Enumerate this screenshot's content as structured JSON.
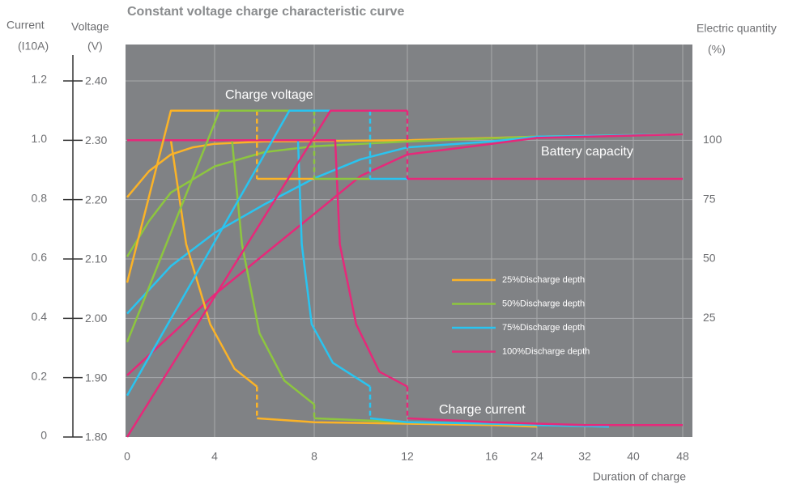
{
  "chart_data": {
    "type": "line",
    "title": "Constant voltage charge characteristic curve",
    "y_label": [
      "Current",
      "(I10A)"
    ],
    "y2_label": [
      "Voltage",
      "(V)"
    ],
    "y3_label": [
      "Electric quantity",
      "(%)"
    ],
    "x_label": "Duration of charge",
    "annotations": [
      "Charge voltage",
      "Battery capacity",
      "Charge current"
    ],
    "xlim": [
      0,
      48
    ],
    "xticks": [
      0,
      4,
      8,
      12,
      16,
      24,
      32,
      40,
      48
    ],
    "ylim": [
      0,
      1.2
    ],
    "yticks": [
      0,
      0.2,
      0.4,
      0.6,
      0.8,
      {
        "value": 1,
        "label": "1.0"
      },
      1.2
    ],
    "y2lim": [
      1.8,
      2.4
    ],
    "y2ticks": [
      {
        "value": 1.8,
        "label": "1.80"
      },
      {
        "value": 1.9,
        "label": "1.90"
      },
      {
        "value": 2.0,
        "label": "2.00"
      },
      {
        "value": 2.1,
        "label": "2.10"
      },
      {
        "value": 2.2,
        "label": "2.20"
      },
      {
        "value": 2.3,
        "label": "2.30"
      },
      {
        "value": 2.4,
        "label": "2.40"
      }
    ],
    "y3lim": [
      -25,
      125
    ],
    "y3ticks": [
      25,
      50,
      75,
      100
    ],
    "grid": true,
    "series": [
      {
        "name": "25%Discharge depth",
        "color": "#fbb327",
        "voltage": {
          "axis": "y2",
          "x": [
            0,
            2,
            5.7,
            5.7,
            5.7,
            8
          ],
          "values": [
            2.06,
            2.35,
            2.35,
            null,
            2.235,
            2.235
          ]
        },
        "current": {
          "axis": "y",
          "x": [
            0,
            2,
            2.7,
            3.8,
            4.8,
            5.7,
            5.7,
            5.7,
            8,
            12,
            16,
            24
          ],
          "values": [
            1.0,
            1.0,
            0.65,
            0.38,
            0.23,
            0.17,
            null,
            0.063,
            0.05,
            0.045,
            0.04,
            0.035
          ]
        },
        "capacity": {
          "axis": "y3",
          "x": [
            0,
            1,
            2,
            3,
            4,
            6,
            12,
            24,
            48
          ],
          "values": [
            76,
            87,
            94,
            97,
            98.5,
            99.5,
            100,
            101.5,
            102.5
          ]
        }
      },
      {
        "name": "50%Discharge depth",
        "color": "#8dc63f",
        "voltage": {
          "axis": "y2",
          "x": [
            0,
            4.2,
            8,
            8,
            8,
            10.4
          ],
          "values": [
            1.96,
            2.35,
            2.35,
            null,
            2.235,
            2.235
          ]
        },
        "current": {
          "axis": "y",
          "x": [
            0,
            4.7,
            5.1,
            5.8,
            6.8,
            8,
            8,
            8,
            12,
            16,
            24
          ],
          "values": [
            1.0,
            1.0,
            0.65,
            0.35,
            0.19,
            0.11,
            null,
            0.063,
            0.05,
            0.045,
            0.04
          ]
        },
        "capacity": {
          "axis": "y3",
          "x": [
            0,
            1,
            2,
            4,
            6,
            8,
            12,
            24,
            48
          ],
          "values": [
            51,
            66,
            78,
            89,
            95,
            97.5,
            99.5,
            101.5,
            102.5
          ]
        }
      },
      {
        "name": "75%Discharge depth",
        "color": "#29c4f0",
        "voltage": {
          "axis": "y2",
          "x": [
            0,
            7,
            10.4,
            10.4,
            10.4,
            12
          ],
          "values": [
            1.87,
            2.35,
            2.35,
            null,
            2.235,
            2.235
          ]
        },
        "current": {
          "axis": "y",
          "x": [
            0,
            7.35,
            7.5,
            7.9,
            8.8,
            10.4,
            10.4,
            10.4,
            12,
            16,
            24,
            36
          ],
          "values": [
            1.0,
            1.0,
            0.65,
            0.38,
            0.25,
            0.17,
            null,
            0.063,
            0.05,
            0.045,
            0.04,
            0.035
          ]
        },
        "capacity": {
          "axis": "y3",
          "x": [
            0,
            2,
            4,
            6,
            8,
            10,
            12,
            16,
            24,
            48
          ],
          "values": [
            27,
            47,
            61,
            73,
            84,
            92,
            97,
            99.5,
            101.5,
            102.5
          ]
        }
      },
      {
        "name": "100%Discharge depth",
        "color": "#e6297a",
        "voltage": {
          "axis": "y2",
          "x": [
            0,
            8.7,
            12,
            12,
            12,
            48
          ],
          "values": [
            1.8,
            2.35,
            2.35,
            null,
            2.235,
            2.235
          ]
        },
        "current": {
          "axis": "y",
          "x": [
            0,
            8.9,
            9.1,
            9.8,
            10.8,
            12,
            12,
            12,
            16,
            24,
            32,
            48
          ],
          "values": [
            1.0,
            1.0,
            0.65,
            0.38,
            0.22,
            0.17,
            null,
            0.063,
            0.05,
            0.045,
            0.04,
            0.04
          ]
        },
        "capacity": {
          "axis": "y3",
          "x": [
            0,
            2,
            4,
            6,
            8,
            10,
            12,
            16,
            24,
            48
          ],
          "values": [
            1,
            18,
            35,
            52,
            69,
            85,
            94,
            98.5,
            101,
            102.5
          ]
        }
      }
    ]
  }
}
